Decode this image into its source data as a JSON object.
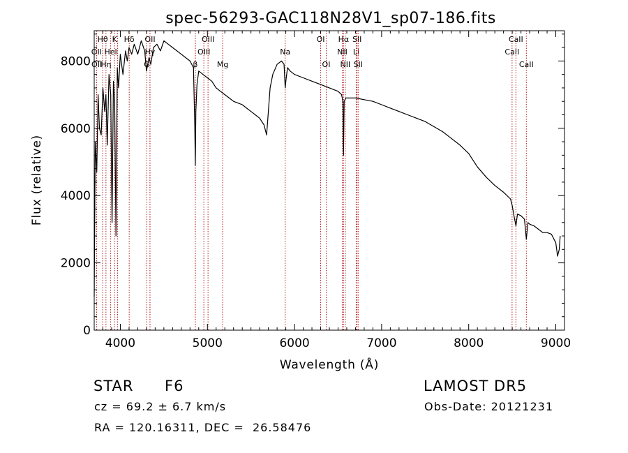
{
  "chart_data": {
    "type": "line",
    "title": "spec-56293-GAC118N28V1_sp07-186.fits",
    "xlabel": "Wavelength (Å)",
    "ylabel": "Flux (relative)",
    "xlim": [
      3700,
      9100
    ],
    "ylim": [
      0,
      8900
    ],
    "x_ticks": [
      4000,
      5000,
      6000,
      7000,
      8000,
      9000
    ],
    "y_ticks": [
      0,
      2000,
      4000,
      6000,
      8000
    ],
    "grid": false,
    "line_color": "#000000",
    "marker_color": "#b22222",
    "series": [
      {
        "x": [
          3700,
          3712,
          3730,
          3745,
          3760,
          3780,
          3800,
          3820,
          3835,
          3850,
          3870,
          3890,
          3905,
          3920,
          3935,
          3950,
          3965,
          3980,
          4000,
          4030,
          4060,
          4080,
          4100,
          4130,
          4160,
          4200,
          4240,
          4280,
          4300,
          4330,
          4350,
          4380,
          4420,
          4460,
          4500,
          4550,
          4600,
          4650,
          4700,
          4750,
          4800,
          4840,
          4855,
          4861,
          4867,
          4880,
          4900,
          4950,
          5000,
          5050,
          5100,
          5150,
          5200,
          5250,
          5300,
          5350,
          5400,
          5450,
          5500,
          5550,
          5600,
          5650,
          5680,
          5700,
          5720,
          5750,
          5800,
          5850,
          5880,
          5893,
          5905,
          5920,
          5950,
          6000,
          6100,
          6200,
          6300,
          6400,
          6500,
          6540,
          6556,
          6563,
          6570,
          6590,
          6650,
          6700,
          6800,
          6900,
          7000,
          7100,
          7200,
          7300,
          7400,
          7500,
          7600,
          7700,
          7800,
          7900,
          8000,
          8100,
          8200,
          8300,
          8400,
          8480,
          8500,
          8520,
          8542,
          8560,
          8600,
          8640,
          8662,
          8680,
          8700,
          8750,
          8800,
          8850,
          8900,
          8950,
          9000,
          9010,
          9020,
          9040,
          9050
        ],
        "y": [
          1000,
          5600,
          4700,
          7000,
          6000,
          5800,
          7200,
          6500,
          7000,
          5500,
          7600,
          7000,
          3200,
          7400,
          6800,
          2800,
          7800,
          7200,
          8200,
          7600,
          8300,
          8000,
          8400,
          8200,
          8500,
          8200,
          8600,
          8300,
          7700,
          8100,
          7900,
          8400,
          8500,
          8300,
          8600,
          8500,
          8400,
          8300,
          8200,
          8100,
          8000,
          7800,
          6000,
          4900,
          6500,
          7300,
          7700,
          7600,
          7500,
          7400,
          7200,
          7100,
          7000,
          6900,
          6800,
          6750,
          6700,
          6600,
          6500,
          6400,
          6300,
          6100,
          5800,
          6500,
          7200,
          7600,
          7900,
          8000,
          7900,
          7200,
          7500,
          7800,
          7700,
          7600,
          7500,
          7400,
          7300,
          7200,
          7100,
          7000,
          6800,
          5200,
          6800,
          6900,
          6900,
          6900,
          6850,
          6800,
          6700,
          6600,
          6500,
          6400,
          6300,
          6200,
          6050,
          5900,
          5700,
          5500,
          5250,
          4850,
          4550,
          4300,
          4100,
          3900,
          3700,
          3400,
          3100,
          3450,
          3400,
          3300,
          2700,
          3200,
          3150,
          3100,
          3000,
          2900,
          2900,
          2850,
          2600,
          2400,
          2200,
          2400,
          2800
        ]
      }
    ],
    "line_markers": [
      {
        "label": "Hθ",
        "x": 3797,
        "row": 0
      },
      {
        "label": "K",
        "x": 3934,
        "row": 0
      },
      {
        "label": "Hδ",
        "x": 4102,
        "row": 0
      },
      {
        "label": "OII",
        "x": 4341,
        "row": 0
      },
      {
        "label": "OIII",
        "x": 5007,
        "row": 0
      },
      {
        "label": "OI",
        "x": 6300,
        "row": 0
      },
      {
        "label": "Hα",
        "x": 6563,
        "row": 0
      },
      {
        "label": "SII",
        "x": 6718,
        "row": 0
      },
      {
        "label": "CaII",
        "x": 8542,
        "row": 0
      },
      {
        "label": "OII",
        "x": 3727,
        "row": 1
      },
      {
        "label": "HeI",
        "x": 3889,
        "row": 1
      },
      {
        "label": "Hγ",
        "x": 4340,
        "row": 1
      },
      {
        "label": "OIII",
        "x": 4959,
        "row": 1
      },
      {
        "label": "NII",
        "x": 6548,
        "row": 1
      },
      {
        "label": "Li",
        "x": 6708,
        "row": 1
      },
      {
        "label": "CaII",
        "x": 8498,
        "row": 1
      },
      {
        "label": "OII",
        "x": 3729,
        "row": 2
      },
      {
        "label": "Hη",
        "x": 3835,
        "row": 2
      },
      {
        "label": "G",
        "x": 4304,
        "row": 2
      },
      {
        "label": "β",
        "x": 4861,
        "row": 2
      },
      {
        "label": "Mg",
        "x": 5175,
        "row": 2
      },
      {
        "label": "Na",
        "x": 5893,
        "row": 1
      },
      {
        "label": "OI",
        "x": 6364,
        "row": 2
      },
      {
        "label": "NII",
        "x": 6583,
        "row": 2
      },
      {
        "label": "SII",
        "x": 6731,
        "row": 2
      },
      {
        "label": "CaII",
        "x": 8662,
        "row": 2
      },
      {
        "label": "H",
        "x": 3968,
        "row": null
      },
      {
        "label": "Hβ",
        "x": 4861,
        "row": null
      }
    ]
  },
  "info": {
    "class_label": "STAR",
    "subclass": "F6",
    "survey": "LAMOST DR5",
    "redshift": "cz = 69.2 ± 6.7 km/s",
    "obs_date": "Obs-Date: 20121231",
    "coords": "RA = 120.16311, DEC =  26.58476"
  }
}
